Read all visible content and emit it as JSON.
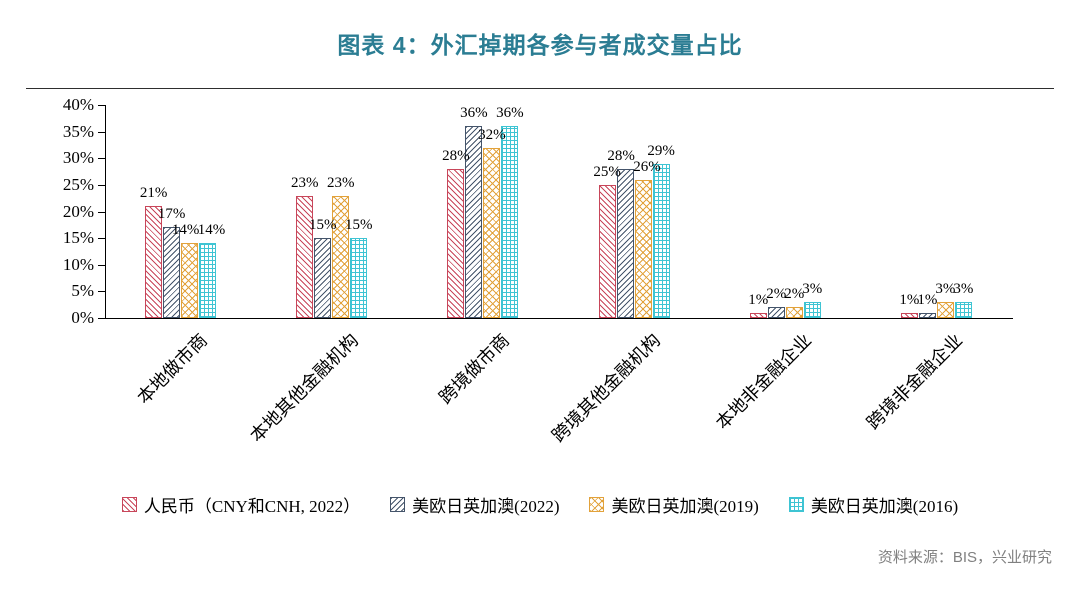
{
  "title_color": "#2b7d93",
  "source": "资料来源：BIS，兴业研究",
  "chart_data": {
    "type": "bar",
    "title": "图表 4：外汇掉期各参与者成交量占比",
    "categories": [
      "本地做市商",
      "本地其他金融机构",
      "跨境做市商",
      "跨境其他金融机构",
      "本地非金融企业",
      "跨境非金融企业"
    ],
    "series": [
      {
        "name": "人民币（CNY和CNH, 2022）",
        "color": "#c8465a",
        "hatch": "diagonal-up",
        "values": [
          21,
          23,
          28,
          25,
          1,
          1
        ]
      },
      {
        "name": "美欧日英加澳(2022)",
        "color": "#44546a",
        "hatch": "diagonal-down",
        "values": [
          17,
          15,
          36,
          28,
          2,
          1
        ]
      },
      {
        "name": "美欧日英加澳(2019)",
        "color": "#e2a23b",
        "hatch": "cross-diagonal",
        "values": [
          14,
          23,
          32,
          26,
          2,
          3
        ]
      },
      {
        "name": "美欧日英加澳(2016)",
        "color": "#3ec4d3",
        "hatch": "grid",
        "values": [
          14,
          15,
          36,
          29,
          3,
          3
        ]
      }
    ],
    "xlabel": "",
    "ylabel": "",
    "ylim": [
      0,
      40
    ],
    "ytick_step": 5,
    "ytick_labels": [
      "0%",
      "5%",
      "10%",
      "15%",
      "20%",
      "25%",
      "30%",
      "35%",
      "40%"
    ],
    "value_label_format": "{v}%",
    "grid": false,
    "legend_position": "bottom"
  }
}
